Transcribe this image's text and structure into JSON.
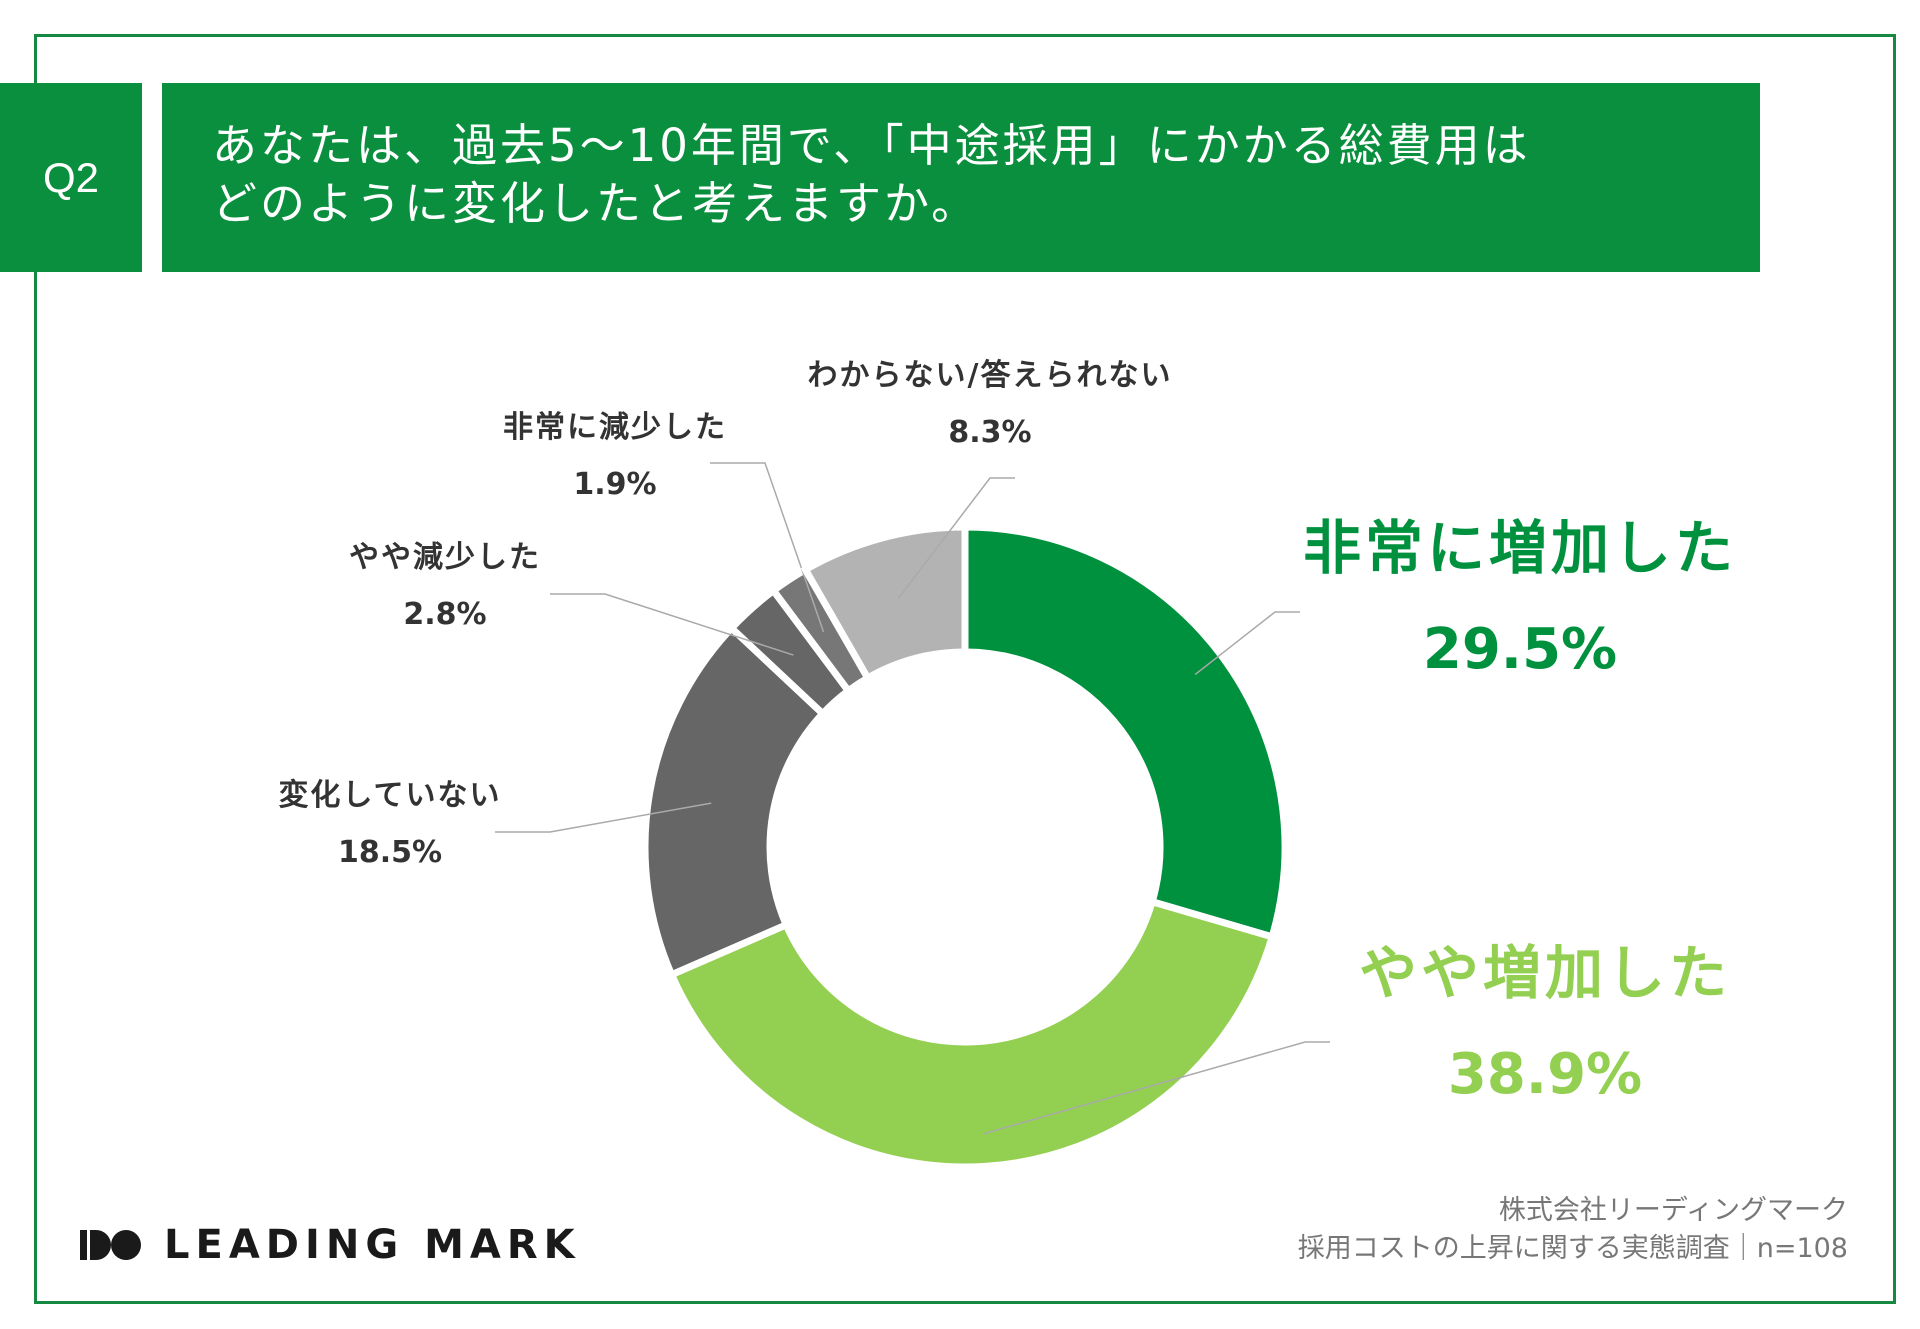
{
  "header": {
    "badge": "Q2",
    "question_line1": "あなたは、過去5〜10年間で、「中途採用」にかかる総費用は",
    "question_line2": "どのように変化したと考えますか。"
  },
  "chart_data": {
    "type": "pie",
    "title": "",
    "slices": [
      {
        "label": "非常に増加した",
        "value": 29.5,
        "display": "29.5%",
        "color": "#00913f"
      },
      {
        "label": "やや増加した",
        "value": 38.9,
        "display": "38.9%",
        "color": "#93cf51"
      },
      {
        "label": "変化していない",
        "value": 18.5,
        "display": "18.5%",
        "color": "#666666"
      },
      {
        "label": "やや減少した",
        "value": 2.8,
        "display": "2.8%",
        "color": "#666666"
      },
      {
        "label": "非常に減少した",
        "value": 1.9,
        "display": "1.9%",
        "color": "#777777"
      },
      {
        "label": "わからない/答えられない",
        "value": 8.3,
        "display": "8.3%",
        "color": "#b3b3b3"
      }
    ]
  },
  "logo": {
    "text": "LEADING MARK"
  },
  "footer": {
    "line1": "株式会社リーディングマーク",
    "line2": "採用コストの上昇に関する実態調査｜n=108"
  },
  "colors": {
    "brand_green": "#0a8f3e",
    "light_green": "#93cf51",
    "frame": "#14893f"
  }
}
